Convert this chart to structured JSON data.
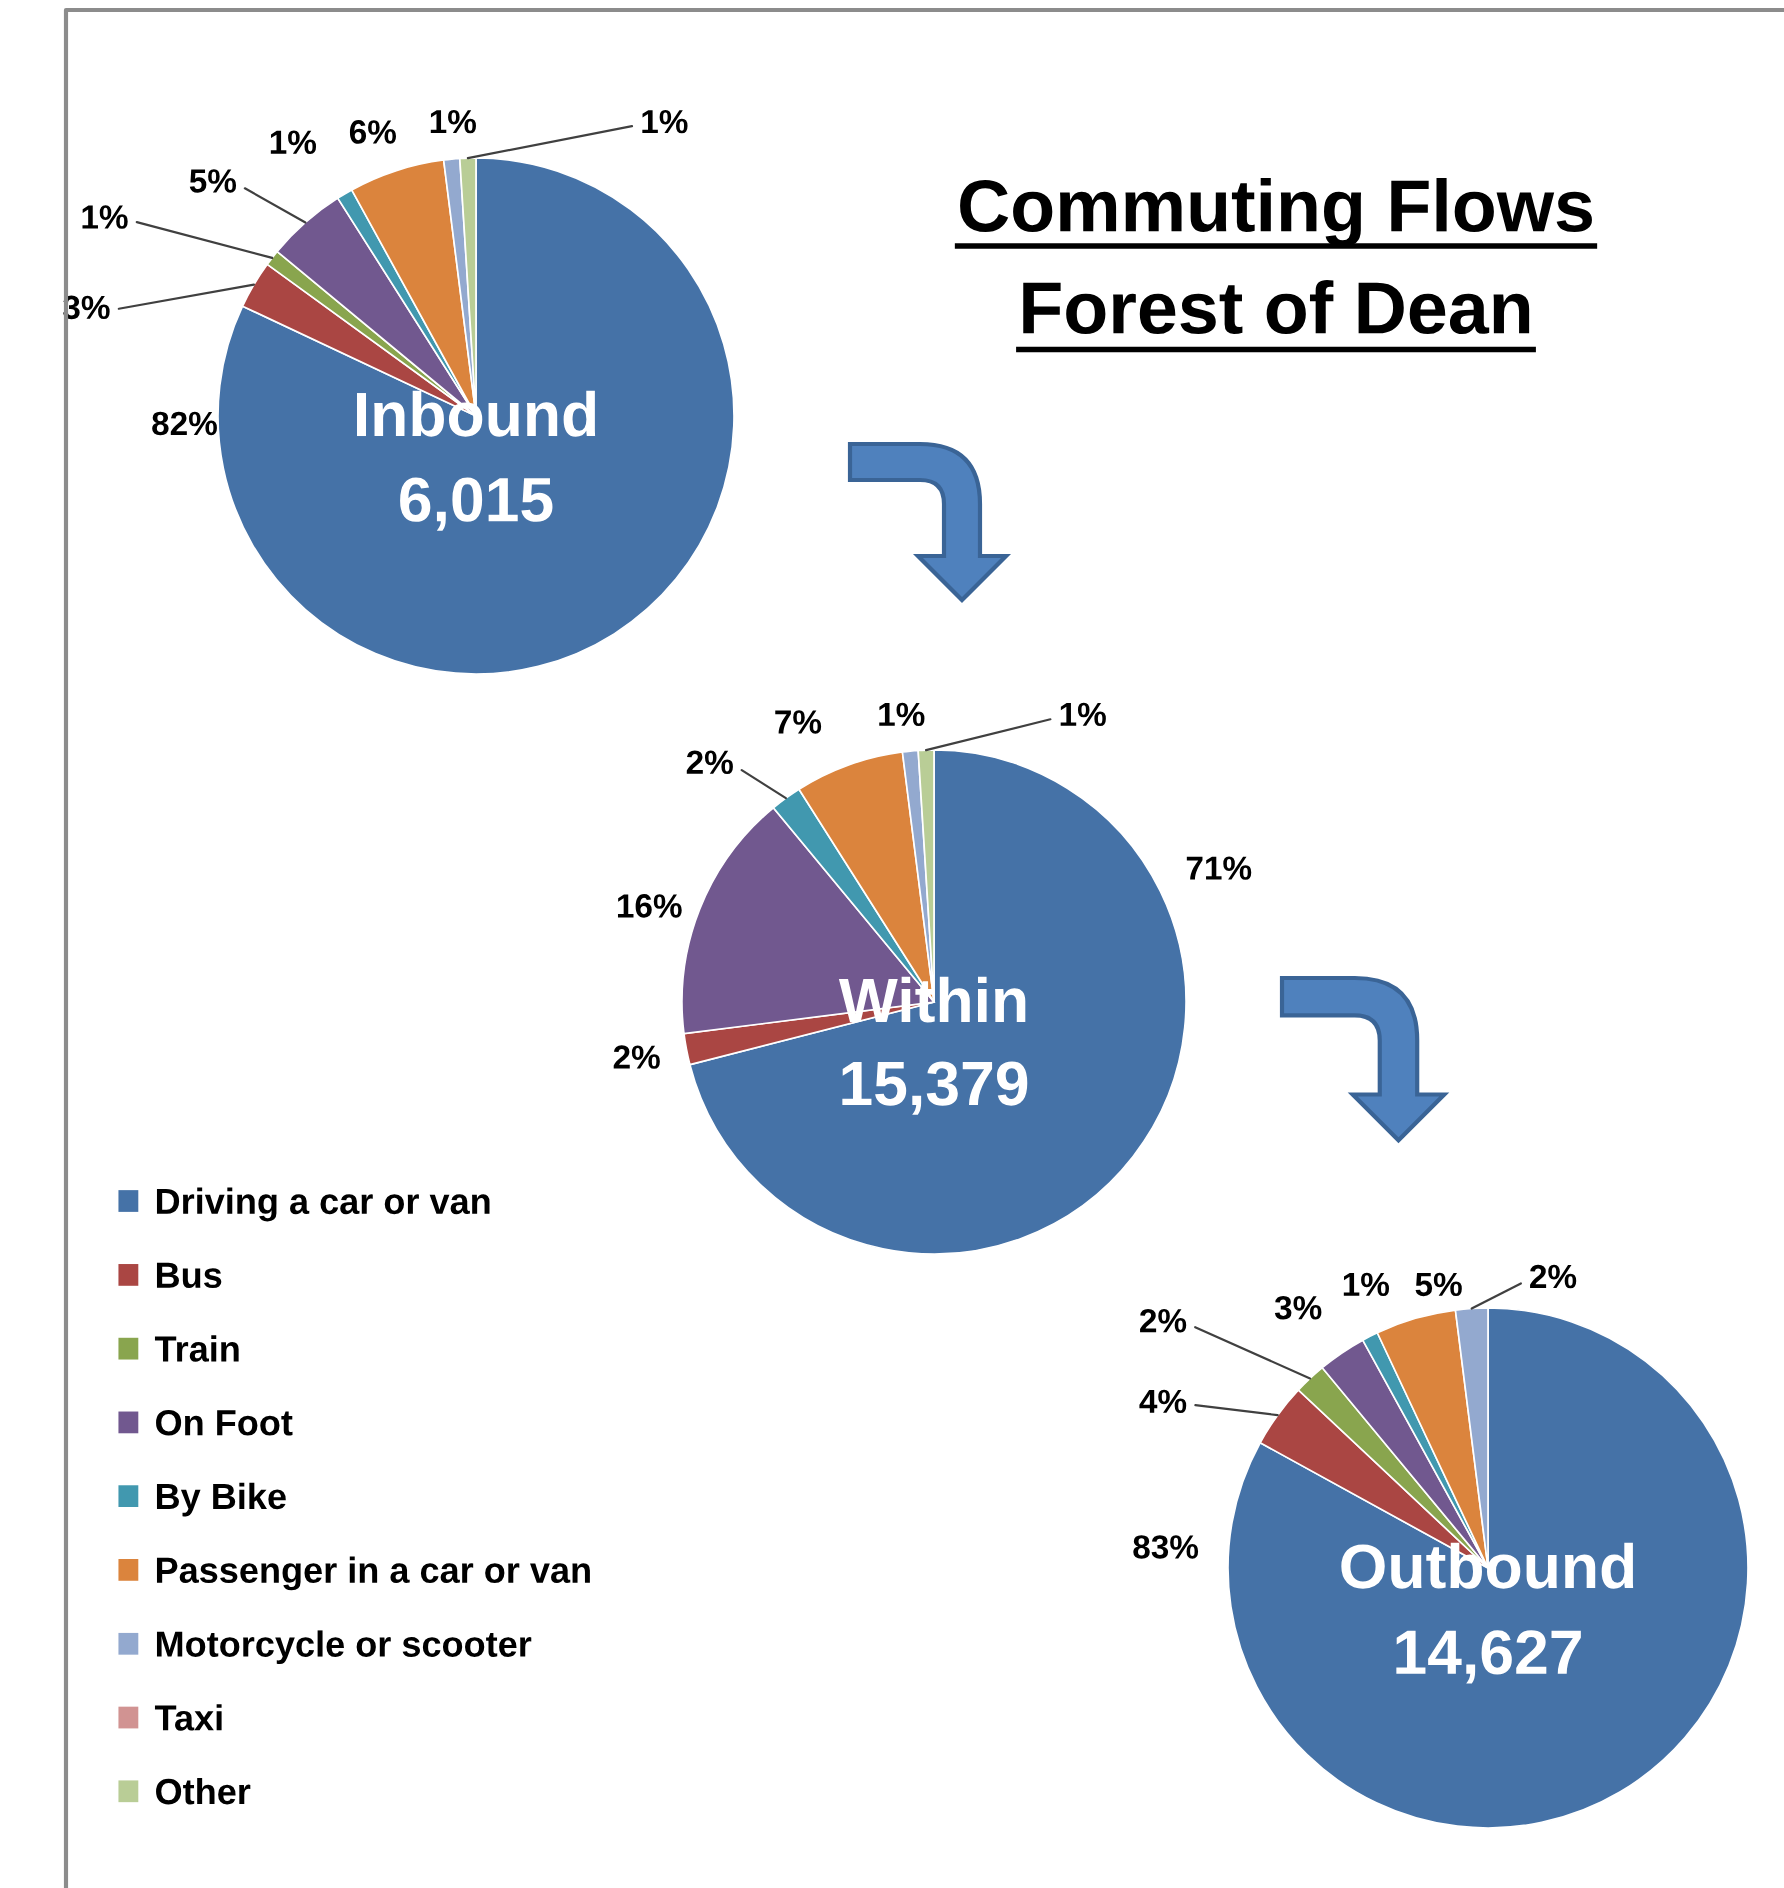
{
  "chart_data": {
    "type": "pie",
    "title": "Commuting Flows\nForest of Dean",
    "categories": [
      "Driving a car or van",
      "Bus",
      "Train",
      "On Foot",
      "By Bike",
      "Passenger in a car or van",
      "Motorcycle or scooter",
      "Taxi",
      "Other"
    ],
    "colors": [
      "#4572a7",
      "#aa4643",
      "#89a54e",
      "#71588f",
      "#4198af",
      "#db843d",
      "#93a9cf",
      "#d19392",
      "#b9cd96"
    ],
    "series": [
      {
        "name": "Inbound",
        "values": [
          82,
          3,
          1,
          5,
          1,
          6,
          1,
          0,
          1
        ],
        "value_labels": [
          "82%",
          "3%",
          "1%",
          "5%",
          "1%",
          "6%",
          "1%",
          null,
          "1%"
        ]
      },
      {
        "name": "Within",
        "values": [
          71,
          2,
          0,
          16,
          2,
          7,
          1,
          0,
          1
        ],
        "value_labels": [
          "71%",
          "2%",
          null,
          "16%",
          "2%",
          "7%",
          "1%",
          null,
          "1%"
        ]
      },
      {
        "name": "Outbound",
        "values": [
          83,
          4,
          2,
          3,
          1,
          5,
          2,
          0,
          0
        ],
        "value_labels": [
          "83%",
          "4%",
          "2%",
          "3%",
          "1%",
          "5%",
          "2%",
          null,
          null
        ]
      }
    ],
    "annotations": [
      "6,015",
      "15,379",
      "14,627"
    ],
    "legend": "bottom left"
  }
}
